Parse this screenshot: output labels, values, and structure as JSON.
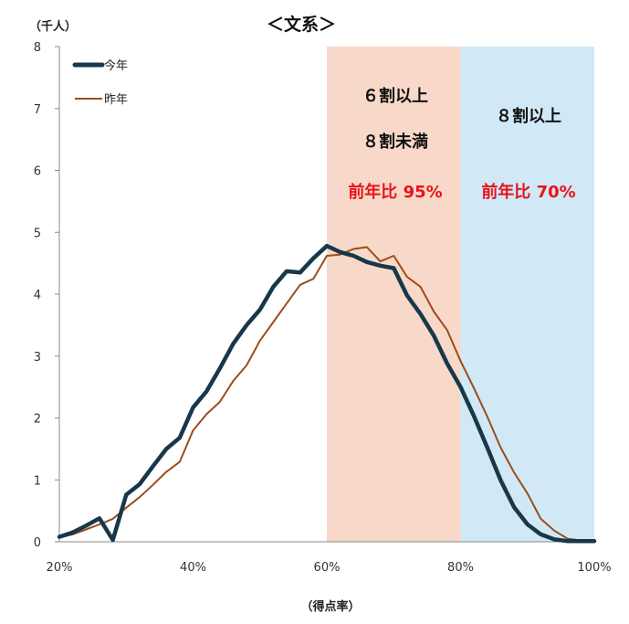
{
  "chart_data": {
    "type": "line",
    "title": "＜文系＞",
    "ylabel": "（千人）",
    "xlabel": "（得点率）",
    "xlim": [
      20,
      100
    ],
    "ylim": [
      0,
      8
    ],
    "xticks": [
      20,
      40,
      60,
      80,
      100
    ],
    "xtick_labels": [
      "20%",
      "40%",
      "60%",
      "80%",
      "100%"
    ],
    "yticks": [
      0,
      1,
      2,
      3,
      4,
      5,
      6,
      7,
      8
    ],
    "ytick_labels": [
      "0",
      "1",
      "2",
      "3",
      "4",
      "5",
      "6",
      "7",
      "8"
    ],
    "grid": false,
    "legend_position": "top-left",
    "series": [
      {
        "name": "今年",
        "color": "#17384a",
        "x": [
          20,
          22,
          24,
          26,
          28,
          30,
          32,
          34,
          36,
          38,
          40,
          42,
          44,
          46,
          48,
          50,
          52,
          54,
          56,
          58,
          60,
          62,
          64,
          66,
          68,
          70,
          72,
          74,
          76,
          78,
          80,
          82,
          84,
          86,
          88,
          90,
          92,
          94,
          96,
          98,
          100
        ],
        "y": [
          0.08,
          0.15,
          0.26,
          0.38,
          0.03,
          0.76,
          0.93,
          1.22,
          1.5,
          1.68,
          2.17,
          2.43,
          2.8,
          3.2,
          3.5,
          3.75,
          4.12,
          4.37,
          4.35,
          4.58,
          4.78,
          4.68,
          4.62,
          4.52,
          4.46,
          4.42,
          3.98,
          3.68,
          3.33,
          2.88,
          2.5,
          2.03,
          1.52,
          0.99,
          0.56,
          0.28,
          0.12,
          0.04,
          0.01,
          0.01,
          0.01
        ]
      },
      {
        "name": "昨年",
        "color": "#9a4d1c",
        "x": [
          20,
          22,
          24,
          26,
          28,
          30,
          32,
          34,
          36,
          38,
          40,
          42,
          44,
          46,
          48,
          50,
          52,
          54,
          56,
          58,
          60,
          62,
          64,
          66,
          68,
          70,
          72,
          74,
          76,
          78,
          80,
          82,
          84,
          86,
          88,
          90,
          92,
          94,
          96,
          98,
          100
        ],
        "y": [
          0.07,
          0.12,
          0.2,
          0.28,
          0.37,
          0.55,
          0.72,
          0.92,
          1.13,
          1.29,
          1.8,
          2.06,
          2.26,
          2.6,
          2.85,
          3.25,
          3.55,
          3.85,
          4.15,
          4.25,
          4.62,
          4.64,
          4.73,
          4.76,
          4.53,
          4.62,
          4.28,
          4.12,
          3.72,
          3.42,
          2.92,
          2.48,
          2.02,
          1.52,
          1.12,
          0.78,
          0.37,
          0.18,
          0.05,
          0.02,
          0.02
        ]
      }
    ],
    "bands": [
      {
        "from": 60,
        "to": 80,
        "color": "#f8d8c9",
        "label1": "６割以上",
        "label2": "８割未満",
        "ratio": "前年比 95%"
      },
      {
        "from": 80,
        "to": 100,
        "color": "#d1e9f6",
        "label1": "８割以上",
        "ratio": "前年比 70%"
      }
    ]
  }
}
